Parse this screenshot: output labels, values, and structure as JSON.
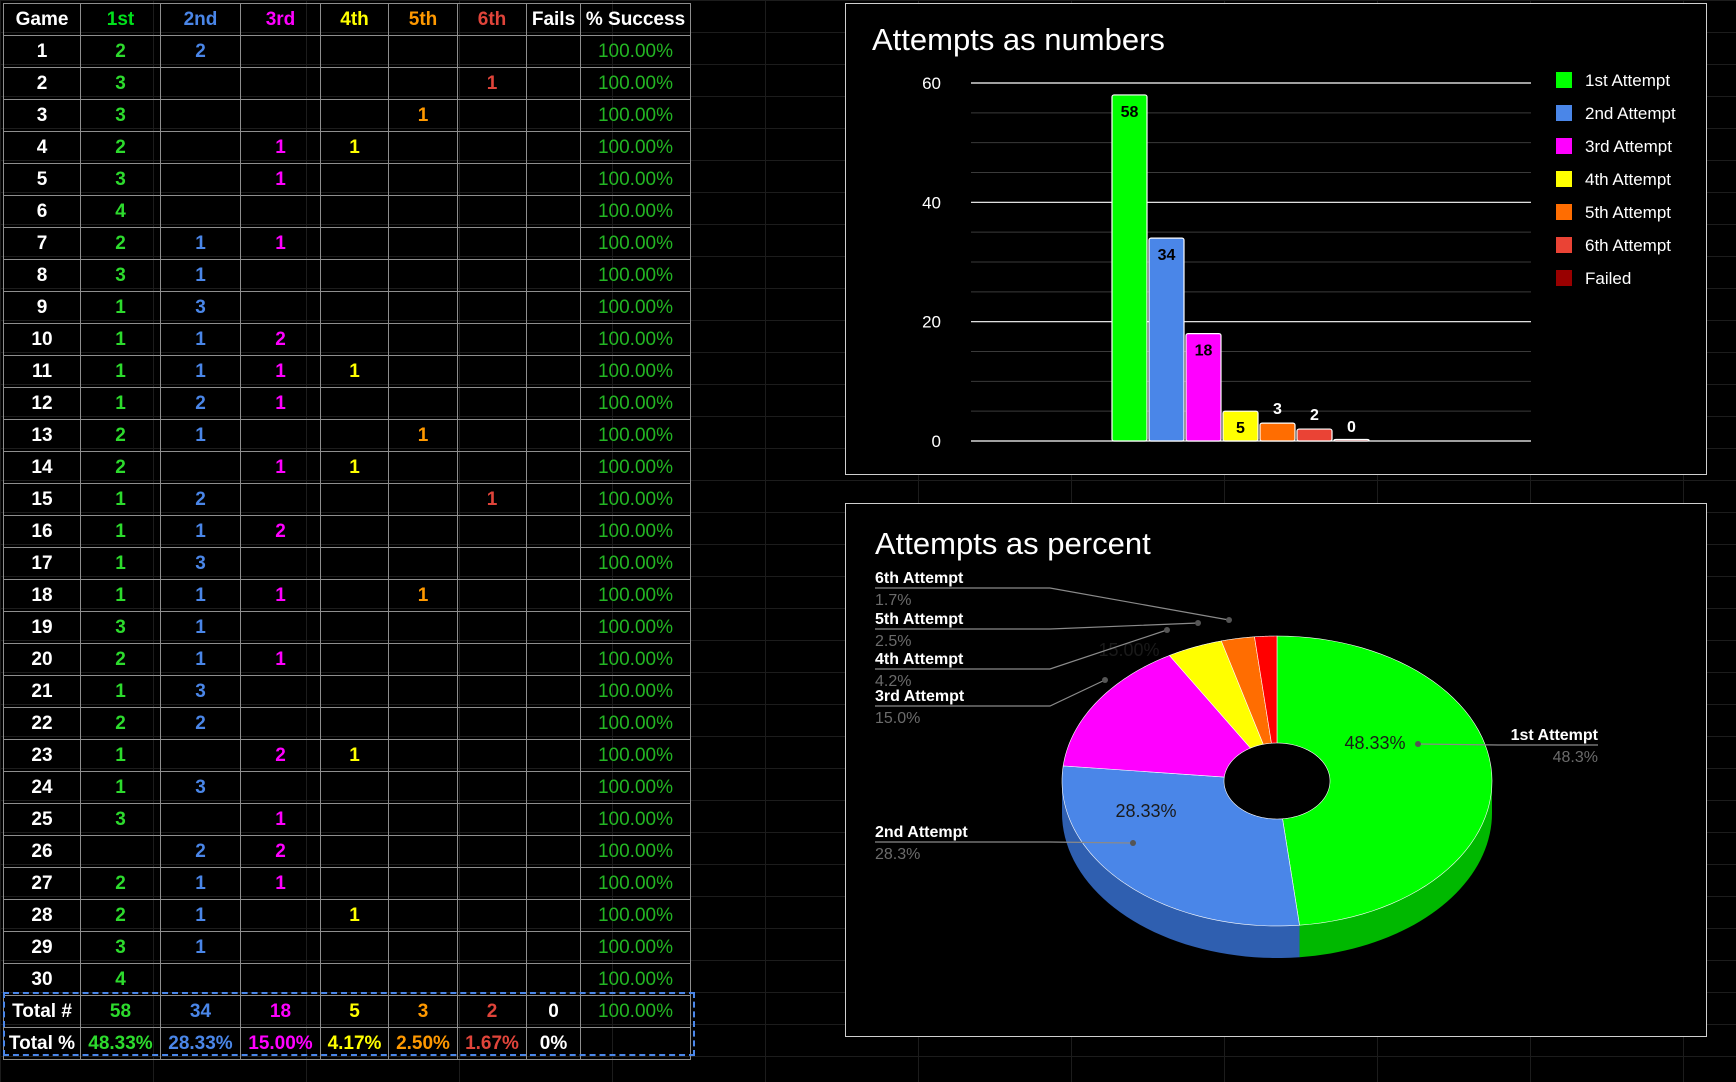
{
  "sheet": {
    "headers": [
      "Game",
      "1st",
      "2nd",
      "3rd",
      "4th",
      "5th",
      "6th",
      "Fails",
      "% Success"
    ],
    "header_colors": [
      "#ffffff",
      "#00e11b",
      "#4a86e8",
      "#ff00ff",
      "#ffff00",
      "#ff9900",
      "#e0443a",
      "#ffffff",
      "#ffffff"
    ],
    "column_colors": [
      "#ffffff",
      "#2ddb2d",
      "#4a86e8",
      "#ff00ff",
      "#ffff00",
      "#ff9900",
      "#e0443a",
      "#ffffff",
      "#23b623"
    ],
    "rows": [
      [
        "1",
        "2",
        "2",
        "",
        "",
        "",
        "",
        "",
        "100.00%"
      ],
      [
        "2",
        "3",
        "",
        "",
        "",
        "",
        "1",
        "",
        "100.00%"
      ],
      [
        "3",
        "3",
        "",
        "",
        "",
        "1",
        "",
        "",
        "100.00%"
      ],
      [
        "4",
        "2",
        "",
        "1",
        "1",
        "",
        "",
        "",
        "100.00%"
      ],
      [
        "5",
        "3",
        "",
        "1",
        "",
        "",
        "",
        "",
        "100.00%"
      ],
      [
        "6",
        "4",
        "",
        "",
        "",
        "",
        "",
        "",
        "100.00%"
      ],
      [
        "7",
        "2",
        "1",
        "1",
        "",
        "",
        "",
        "",
        "100.00%"
      ],
      [
        "8",
        "3",
        "1",
        "",
        "",
        "",
        "",
        "",
        "100.00%"
      ],
      [
        "9",
        "1",
        "3",
        "",
        "",
        "",
        "",
        "",
        "100.00%"
      ],
      [
        "10",
        "1",
        "1",
        "2",
        "",
        "",
        "",
        "",
        "100.00%"
      ],
      [
        "11",
        "1",
        "1",
        "1",
        "1",
        "",
        "",
        "",
        "100.00%"
      ],
      [
        "12",
        "1",
        "2",
        "1",
        "",
        "",
        "",
        "",
        "100.00%"
      ],
      [
        "13",
        "2",
        "1",
        "",
        "",
        "1",
        "",
        "",
        "100.00%"
      ],
      [
        "14",
        "2",
        "",
        "1",
        "1",
        "",
        "",
        "",
        "100.00%"
      ],
      [
        "15",
        "1",
        "2",
        "",
        "",
        "",
        "1",
        "",
        "100.00%"
      ],
      [
        "16",
        "1",
        "1",
        "2",
        "",
        "",
        "",
        "",
        "100.00%"
      ],
      [
        "17",
        "1",
        "3",
        "",
        "",
        "",
        "",
        "",
        "100.00%"
      ],
      [
        "18",
        "1",
        "1",
        "1",
        "",
        "1",
        "",
        "",
        "100.00%"
      ],
      [
        "19",
        "3",
        "1",
        "",
        "",
        "",
        "",
        "",
        "100.00%"
      ],
      [
        "20",
        "2",
        "1",
        "1",
        "",
        "",
        "",
        "",
        "100.00%"
      ],
      [
        "21",
        "1",
        "3",
        "",
        "",
        "",
        "",
        "",
        "100.00%"
      ],
      [
        "22",
        "2",
        "2",
        "",
        "",
        "",
        "",
        "",
        "100.00%"
      ],
      [
        "23",
        "1",
        "",
        "2",
        "1",
        "",
        "",
        "",
        "100.00%"
      ],
      [
        "24",
        "1",
        "3",
        "",
        "",
        "",
        "",
        "",
        "100.00%"
      ],
      [
        "25",
        "3",
        "",
        "1",
        "",
        "",
        "",
        "",
        "100.00%"
      ],
      [
        "26",
        "",
        "2",
        "2",
        "",
        "",
        "",
        "",
        "100.00%"
      ],
      [
        "27",
        "2",
        "1",
        "1",
        "",
        "",
        "",
        "",
        "100.00%"
      ],
      [
        "28",
        "2",
        "1",
        "",
        "1",
        "",
        "",
        "",
        "100.00%"
      ],
      [
        "29",
        "3",
        "1",
        "",
        "",
        "",
        "",
        "",
        "100.00%"
      ],
      [
        "30",
        "4",
        "",
        "",
        "",
        "",
        "",
        "",
        "100.00%"
      ]
    ],
    "total_count": [
      "Total #",
      "58",
      "34",
      "18",
      "5",
      "3",
      "2",
      "0",
      "100.00%"
    ],
    "total_percent": [
      "Total %",
      "48.33%",
      "28.33%",
      "15.00%",
      "4.17%",
      "2.50%",
      "1.67%",
      "0%",
      ""
    ]
  },
  "chart_data": [
    {
      "type": "bar",
      "title": "Attempts as numbers",
      "categories": [
        "1st Attempt",
        "2nd Attempt",
        "3rd Attempt",
        "4th Attempt",
        "5th Attempt",
        "6th Attempt",
        "Failed"
      ],
      "values": [
        58,
        34,
        18,
        5,
        3,
        2,
        0
      ],
      "colors": [
        "#00ff00",
        "#4a86e8",
        "#ff00ff",
        "#ffff00",
        "#ff6d01",
        "#ea4335",
        "#990000"
      ],
      "ylim": [
        0,
        60
      ],
      "yticks": [
        0,
        20,
        40,
        60
      ],
      "grid": true,
      "legend": "right",
      "data_labels": true
    },
    {
      "type": "pie",
      "title": "Attempts as percent",
      "categories": [
        "1st Attempt",
        "2nd Attempt",
        "3rd Attempt",
        "4th Attempt",
        "5th Attempt",
        "6th Attempt"
      ],
      "values": [
        48.33,
        28.33,
        15.0,
        4.17,
        2.5,
        1.67
      ],
      "inner_labels": [
        "48.33%",
        "28.33%",
        "15.00%",
        "",
        "",
        ""
      ],
      "callout_values": [
        "48.3%",
        "28.3%",
        "15.0%",
        "4.2%",
        "2.5%",
        "1.7%"
      ],
      "colors": [
        "#00ff00",
        "#4a86e8",
        "#ff00ff",
        "#ffff00",
        "#ff6d01",
        "#ff0000"
      ],
      "style": "3d-donut"
    }
  ]
}
